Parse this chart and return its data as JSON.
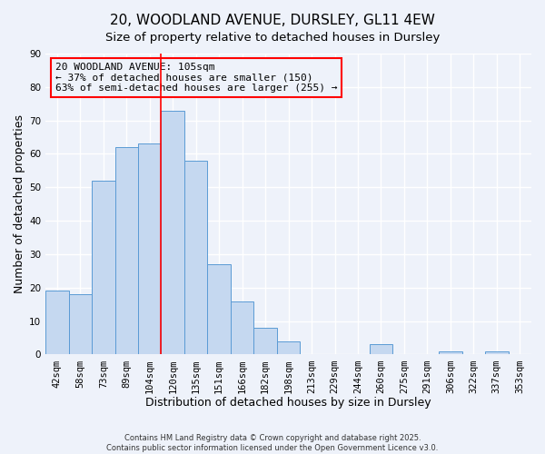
{
  "title": "20, WOODLAND AVENUE, DURSLEY, GL11 4EW",
  "subtitle": "Size of property relative to detached houses in Dursley",
  "xlabel": "Distribution of detached houses by size in Dursley",
  "ylabel": "Number of detached properties",
  "bar_labels": [
    "42sqm",
    "58sqm",
    "73sqm",
    "89sqm",
    "104sqm",
    "120sqm",
    "135sqm",
    "151sqm",
    "166sqm",
    "182sqm",
    "198sqm",
    "213sqm",
    "229sqm",
    "244sqm",
    "260sqm",
    "275sqm",
    "291sqm",
    "306sqm",
    "322sqm",
    "337sqm",
    "353sqm"
  ],
  "bar_values": [
    19,
    18,
    52,
    62,
    63,
    73,
    58,
    27,
    16,
    8,
    4,
    0,
    0,
    0,
    3,
    0,
    0,
    1,
    0,
    1,
    0
  ],
  "bar_color": "#c5d8f0",
  "bar_edge_color": "#5b9bd5",
  "ylim": [
    0,
    90
  ],
  "yticks": [
    0,
    10,
    20,
    30,
    40,
    50,
    60,
    70,
    80,
    90
  ],
  "property_line_bar_index": 4,
  "property_label": "20 WOODLAND AVENUE: 105sqm",
  "annotation_smaller": "← 37% of detached houses are smaller (150)",
  "annotation_larger": "63% of semi-detached houses are larger (255) →",
  "footnote1": "Contains HM Land Registry data © Crown copyright and database right 2025.",
  "footnote2": "Contains public sector information licensed under the Open Government Licence v3.0.",
  "background_color": "#eef2fa",
  "grid_color": "#ffffff",
  "title_fontsize": 11,
  "subtitle_fontsize": 9.5,
  "axis_label_fontsize": 9,
  "tick_fontsize": 7.5,
  "annotation_fontsize": 8
}
